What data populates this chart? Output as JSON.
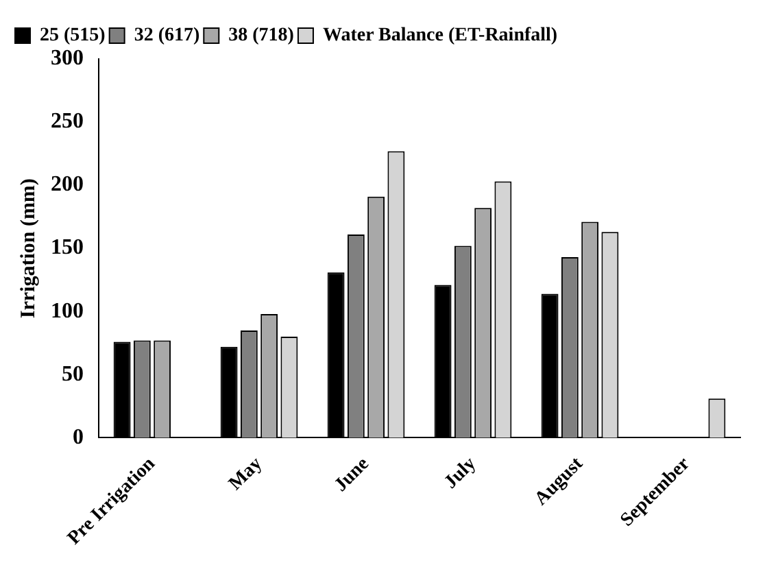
{
  "chart_data": {
    "type": "bar",
    "ylabel": "Irrigation (mm)",
    "categories": [
      "Pre Irrigation",
      "May",
      "June",
      "July",
      "August",
      "September"
    ],
    "series": [
      {
        "name": "25 (515)",
        "color": "#000000",
        "values": [
          76,
          72,
          131,
          121,
          114,
          null
        ]
      },
      {
        "name": "32 (617)",
        "color": "#808080",
        "values": [
          77,
          85,
          161,
          152,
          143,
          null
        ]
      },
      {
        "name": "38 (718)",
        "color": "#a8a8a8",
        "values": [
          77,
          98,
          191,
          182,
          171,
          null
        ]
      },
      {
        "name": "Water Balance (ET-Rainfall)",
        "color": "#d4d4d4",
        "values": [
          null,
          80,
          227,
          203,
          163,
          31
        ]
      }
    ],
    "ylim": [
      0,
      300
    ],
    "yticks": [
      0,
      50,
      100,
      150,
      200,
      250,
      300
    ],
    "grid": false,
    "legend": "top left"
  }
}
